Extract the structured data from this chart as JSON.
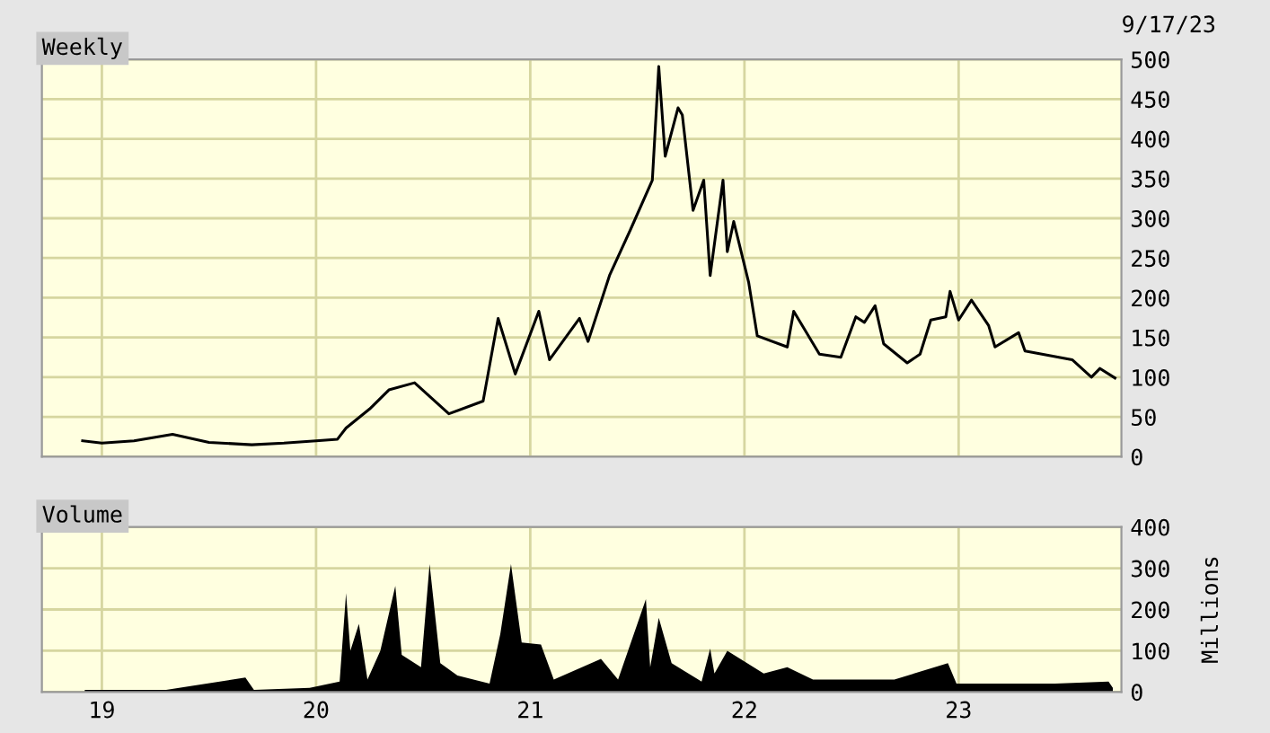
{
  "chart_data": [
    {
      "type": "line",
      "title": "Weekly",
      "annotations": [
        "9/17/23"
      ],
      "tick_labels": "y",
      "grid": true,
      "x": [
        2018.91,
        2019.0,
        2019.15,
        2019.33,
        2019.5,
        2019.7,
        2019.85,
        2020.0,
        2020.1,
        2020.14,
        2020.25,
        2020.34,
        2020.46,
        2020.62,
        2020.78,
        2020.85,
        2020.93,
        2021.04,
        2021.09,
        2021.23,
        2021.27,
        2021.37,
        2021.47,
        2021.57,
        2021.6,
        2021.63,
        2021.69,
        2021.71,
        2021.76,
        2021.81,
        2021.84,
        2021.9,
        2021.92,
        2021.95,
        2022.02,
        2022.06,
        2022.2,
        2022.23,
        2022.35,
        2022.45,
        2022.52,
        2022.56,
        2022.61,
        2022.65,
        2022.76,
        2022.82,
        2022.87,
        2022.94,
        2022.96,
        2023.0,
        2023.06,
        2023.14,
        2023.17,
        2023.28,
        2023.31,
        2023.53,
        2023.62,
        2023.66,
        2023.73
      ],
      "series": [
        {
          "color": "#000000",
          "values": [
            20,
            17,
            20,
            28,
            18,
            15,
            17,
            20,
            22,
            36,
            60,
            84,
            93,
            54,
            70,
            174,
            104,
            183,
            122,
            174,
            145,
            228,
            287,
            348,
            491,
            378,
            439,
            430,
            310,
            348,
            228,
            348,
            258,
            296,
            219,
            152,
            138,
            183,
            129,
            125,
            176,
            169,
            190,
            142,
            118,
            129,
            172,
            176,
            208,
            172,
            197,
            165,
            138,
            156,
            133,
            122,
            100,
            111,
            99
          ]
        }
      ],
      "xlim": [
        2018.72,
        2023.76
      ],
      "xticks": [
        {
          "value": 2019,
          "label": null
        },
        {
          "value": 2020,
          "label": null
        },
        {
          "value": 2021,
          "label": null
        },
        {
          "value": 2022,
          "label": null
        },
        {
          "value": 2023,
          "label": null
        }
      ],
      "ylim": [
        0,
        500
      ],
      "yticks": [
        0,
        50,
        100,
        150,
        200,
        250,
        300,
        350,
        400,
        450,
        500
      ]
    },
    {
      "type": "area",
      "title": "Volume",
      "ylabel": "Millions",
      "grid": true,
      "x": [
        2018.92,
        2019.3,
        2019.67,
        2019.71,
        2019.97,
        2020.11,
        2020.14,
        2020.16,
        2020.2,
        2020.24,
        2020.3,
        2020.37,
        2020.4,
        2020.49,
        2020.53,
        2020.58,
        2020.66,
        2020.81,
        2020.86,
        2020.91,
        2020.96,
        2021.05,
        2021.11,
        2021.33,
        2021.41,
        2021.54,
        2021.56,
        2021.6,
        2021.66,
        2021.8,
        2021.84,
        2021.86,
        2021.92,
        2022.09,
        2022.2,
        2022.32,
        2022.7,
        2022.95,
        2022.99,
        2023.45,
        2023.7,
        2023.72
      ],
      "series": [
        {
          "color": "#000000",
          "values": [
            5,
            5,
            35,
            5,
            10,
            25,
            240,
            100,
            165,
            30,
            100,
            257,
            90,
            60,
            310,
            70,
            40,
            20,
            140,
            310,
            120,
            115,
            30,
            80,
            30,
            225,
            60,
            180,
            70,
            25,
            105,
            45,
            100,
            45,
            60,
            30,
            30,
            70,
            20,
            20,
            25,
            10
          ]
        }
      ],
      "xlim": [
        2018.72,
        2023.76
      ],
      "xticks": [
        {
          "value": 2019,
          "label": "19"
        },
        {
          "value": 2020,
          "label": "20"
        },
        {
          "value": 2021,
          "label": "21"
        },
        {
          "value": 2022,
          "label": "22"
        },
        {
          "value": 2023,
          "label": "23"
        }
      ],
      "ylim": [
        0,
        400
      ],
      "yticks": [
        0,
        100,
        200,
        300,
        400
      ]
    }
  ]
}
